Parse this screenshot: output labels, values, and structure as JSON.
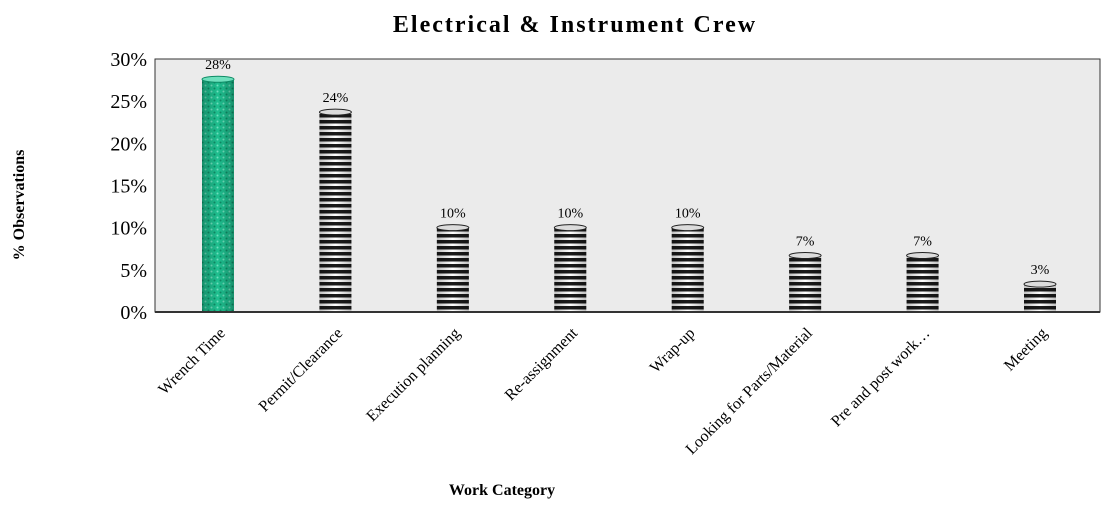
{
  "chart_data": {
    "type": "bar",
    "title": "Electrical & Instrument Crew",
    "xlabel": "Work Category",
    "ylabel": "% Observations",
    "categories": [
      "Wrench Time",
      "Permit/Clearance",
      "Execution planning",
      "Re-assignment",
      "Wrap-up",
      "Looking for Parts/Material",
      "Pre and post work…",
      "Meeting"
    ],
    "values": [
      27.6,
      23.7,
      10.0,
      10.0,
      10.0,
      6.7,
      6.7,
      3.3
    ],
    "data_labels": [
      "28%",
      "24%",
      "10%",
      "10%",
      "10%",
      "7%",
      "7%",
      "3%"
    ],
    "yticks": [
      "0%",
      "5%",
      "10%",
      "15%",
      "20%",
      "25%",
      "30%"
    ],
    "ylim": [
      0,
      30
    ],
    "grid": false,
    "legend": "none",
    "colors": {
      "highlight_bar": "#1fbf8f",
      "highlight_bar_dark": "#0f8c66",
      "bar_stripe_dark": "#1a1a1a",
      "bar_stripe_light": "#ffffff",
      "plot_background": "#ebebeb"
    }
  }
}
